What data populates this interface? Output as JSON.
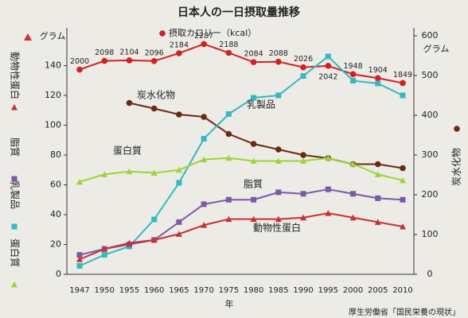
{
  "chart_data": {
    "type": "line",
    "title": "日本人の一日摂取量推移",
    "categories": [
      "1947",
      "1950",
      "1955",
      "1960",
      "1965",
      "1970",
      "1975",
      "1980",
      "1985",
      "1990",
      "1995",
      "2000",
      "2005",
      "2010"
    ],
    "xlabel": "年",
    "y_unit": "グラム",
    "y2_unit": "グラム",
    "source": "厚生労働省「国民栄養の現状」",
    "ylim": [
      0,
      160
    ],
    "yticks": [
      0,
      20,
      40,
      60,
      80,
      100,
      120,
      140
    ],
    "y2lim": [
      0,
      600
    ],
    "y2ticks": [
      0,
      100,
      200,
      300,
      400,
      500,
      600
    ],
    "y3lim": [
      -300,
      2380
    ],
    "series": [
      {
        "name": "摂取カロリー（kcal）",
        "color": "#d32020",
        "marker": "circle",
        "axis": "y3",
        "values": [
          2000,
          2098,
          2104,
          2096,
          2184,
          2287,
          2188,
          2084,
          2088,
          2026,
          2042,
          1948,
          1904,
          1849
        ]
      },
      {
        "name": "炭水化物",
        "color": "#6b2a10",
        "marker": "circle",
        "axis": "y2",
        "values": [
          null,
          null,
          431,
          417,
          402,
          396,
          353,
          328,
          314,
          300,
          292,
          277,
          277,
          267
        ]
      },
      {
        "name": "乳製品",
        "color": "#35b7c4",
        "marker": "square",
        "axis": "y2",
        "values": [
          21,
          49,
          70,
          138,
          230,
          341,
          403,
          444,
          450,
          499,
          548,
          487,
          480,
          450
        ]
      },
      {
        "name": "蛋白質",
        "color": "#9ed43a",
        "marker": "triangle",
        "axis": "y",
        "values": [
          62,
          67,
          69,
          68,
          70,
          77,
          78,
          76,
          76,
          76,
          78,
          74,
          67,
          63
        ]
      },
      {
        "name": "脂質",
        "color": "#7a5aa8",
        "marker": "square",
        "axis": "y",
        "values": [
          13,
          17,
          20,
          23,
          35,
          47,
          50,
          50,
          55,
          54,
          57,
          54,
          51,
          50
        ]
      },
      {
        "name": "動物性蛋白",
        "color": "#c83232",
        "marker": "triangle",
        "axis": "y",
        "values": [
          10,
          17,
          21,
          23,
          27,
          33,
          37,
          37,
          37,
          38,
          41,
          38,
          35,
          32
        ]
      }
    ]
  }
}
